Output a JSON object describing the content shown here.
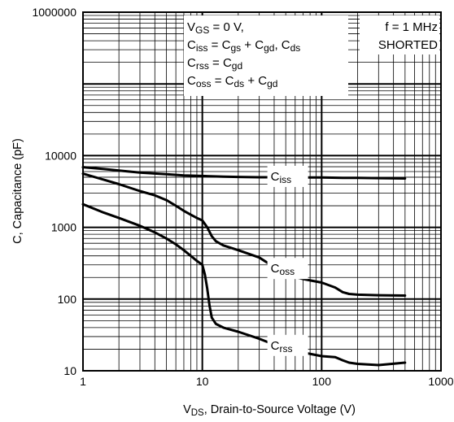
{
  "chart_data": {
    "type": "line",
    "xscale": "log",
    "yscale": "log",
    "xlim": [
      1,
      1000
    ],
    "ylim": [
      10,
      1000000
    ],
    "grid": true,
    "xticks": [
      {
        "value": 1,
        "label": "1"
      },
      {
        "value": 10,
        "label": "10"
      },
      {
        "value": 100,
        "label": "100"
      },
      {
        "value": 1000,
        "label": "1000"
      }
    ],
    "yticks": [
      {
        "value": 10,
        "label": "10"
      },
      {
        "value": 100,
        "label": "100"
      },
      {
        "value": 1000,
        "label": "1000"
      },
      {
        "value": 10000,
        "label": "10000"
      },
      {
        "value": 1000000,
        "label": "1000000"
      }
    ],
    "xlabel": {
      "main": "V",
      "sub": "DS",
      "rest": ", Drain-to-Source Voltage (V)"
    },
    "ylabel": "C, Capacitance (pF)",
    "annotations": {
      "conditions_left": [
        [
          {
            "t": "V"
          },
          {
            "t": "GS",
            "sub": true
          },
          {
            "t": " = 0 V,"
          }
        ],
        [
          {
            "t": "C"
          },
          {
            "t": "iss",
            "sub": true
          },
          {
            "t": " = C"
          },
          {
            "t": "gs",
            "sub": true
          },
          {
            "t": " + C"
          },
          {
            "t": "gd",
            "sub": true
          },
          {
            "t": ", C"
          },
          {
            "t": "ds",
            "sub": true
          }
        ],
        [
          {
            "t": "C"
          },
          {
            "t": "rss",
            "sub": true
          },
          {
            "t": " = C"
          },
          {
            "t": "gd",
            "sub": true
          }
        ],
        [
          {
            "t": "C"
          },
          {
            "t": "oss",
            "sub": true
          },
          {
            "t": " = C"
          },
          {
            "t": "ds",
            "sub": true
          },
          {
            "t": " + C"
          },
          {
            "t": "gd",
            "sub": true
          }
        ]
      ],
      "conditions_right": [
        "f = 1 MHz",
        "SHORTED"
      ]
    },
    "series": [
      {
        "name": "Ciss",
        "label_main": "C",
        "label_sub": "iss",
        "x": [
          1,
          1.5,
          2,
          3,
          5,
          7,
          10,
          15,
          20,
          30,
          50,
          70,
          100,
          150,
          200,
          300,
          500
        ],
        "y": [
          6900,
          6500,
          6200,
          5800,
          5500,
          5300,
          5200,
          5100,
          5050,
          5000,
          5000,
          4950,
          4950,
          4900,
          4900,
          4850,
          4800
        ]
      },
      {
        "name": "Coss",
        "label_main": "C",
        "label_sub": "oss",
        "x": [
          1,
          1.5,
          2,
          3,
          4,
          5,
          6,
          7,
          8,
          9,
          10,
          11,
          12,
          13,
          15,
          20,
          30,
          50,
          70,
          100,
          130,
          150,
          170,
          200,
          300,
          500
        ],
        "y": [
          5600,
          4600,
          4000,
          3200,
          2800,
          2400,
          2000,
          1700,
          1500,
          1350,
          1250,
          1000,
          750,
          640,
          560,
          480,
          380,
          220,
          190,
          170,
          145,
          125,
          118,
          115,
          113,
          112
        ]
      },
      {
        "name": "Crss",
        "label_main": "C",
        "label_sub": "rss",
        "x": [
          1,
          1.5,
          2,
          3,
          4,
          5,
          6,
          7,
          8,
          9,
          10,
          10.5,
          11,
          11.5,
          12,
          13,
          15,
          20,
          30,
          50,
          70,
          100,
          130,
          150,
          170,
          200,
          300,
          500
        ],
        "y": [
          2100,
          1600,
          1350,
          1050,
          850,
          700,
          580,
          480,
          400,
          340,
          300,
          220,
          140,
          80,
          55,
          45,
          40,
          35,
          28,
          20,
          18,
          16,
          15.5,
          14,
          13,
          12.5,
          12,
          13
        ]
      }
    ]
  }
}
